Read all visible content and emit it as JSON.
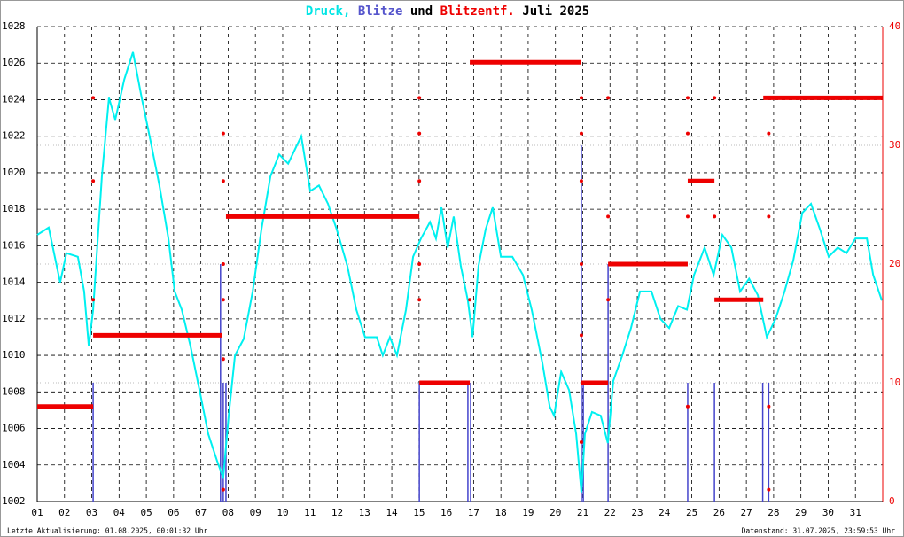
{
  "chart_data": {
    "type": "line",
    "title_parts": [
      {
        "text": "Druck,",
        "color": "#00e5e5"
      },
      {
        "text": "Blitze",
        "color": "#5555cc"
      },
      {
        "text": "und",
        "color": "#000000"
      },
      {
        "text": "Blitzentf.",
        "color": "#ee0000"
      },
      {
        "text": "Juli 2025",
        "color": "#000000"
      }
    ],
    "footer_left": "Letzte Aktualisierung: 01.08.2025, 00:01:32 Uhr",
    "footer_right": "Datenstand: 31.07.2025, 23:59:53 Uhr",
    "xlim": [
      1,
      32
    ],
    "xticks": [
      {
        "value": 1,
        "label": "01"
      },
      {
        "value": 2,
        "label": "02"
      },
      {
        "value": 3,
        "label": "03"
      },
      {
        "value": 4,
        "label": "04"
      },
      {
        "value": 5,
        "label": "05"
      },
      {
        "value": 6,
        "label": "06"
      },
      {
        "value": 7,
        "label": "07"
      },
      {
        "value": 8,
        "label": "08"
      },
      {
        "value": 9,
        "label": "09"
      },
      10,
      11,
      12,
      13,
      14,
      15,
      16,
      17,
      18,
      19,
      20,
      21,
      22,
      23,
      24,
      25,
      26,
      27,
      28,
      29,
      30,
      31
    ],
    "ylim": [
      1002,
      1028
    ],
    "yticks": [
      1002,
      1004,
      1006,
      1008,
      1010,
      1012,
      1014,
      1016,
      1018,
      1020,
      1022,
      1024,
      1026,
      1028
    ],
    "y2lim": [
      0,
      40
    ],
    "y2ticks": [
      0,
      10,
      20,
      30,
      40
    ],
    "y2color": "#ee0000",
    "grid": true,
    "series": [
      {
        "kind": "line",
        "color": "#00f0f0",
        "x": [
          1.0,
          1.42,
          1.84,
          2.07,
          2.49,
          2.72,
          2.89,
          3.05,
          3.37,
          3.63,
          3.86,
          4.19,
          4.51,
          4.83,
          5.16,
          5.48,
          5.81,
          6.04,
          6.3,
          6.62,
          6.95,
          7.27,
          7.6,
          7.82,
          8.02,
          8.25,
          8.57,
          8.9,
          9.22,
          9.55,
          9.87,
          10.2,
          10.68,
          11.01,
          11.33,
          11.66,
          11.98,
          12.37,
          12.7,
          13.02,
          13.45,
          13.67,
          13.93,
          14.19,
          14.52,
          14.78,
          15.07,
          15.4,
          15.62,
          15.82,
          16.05,
          16.27,
          16.53,
          16.79,
          16.96,
          17.18,
          17.44,
          17.7,
          18.0,
          18.42,
          18.81,
          19.13,
          19.52,
          19.79,
          19.95,
          20.21,
          20.5,
          20.76,
          20.95,
          21.08,
          21.34,
          21.66,
          21.92,
          22.12,
          22.45,
          22.77,
          23.1,
          23.52,
          23.85,
          24.17,
          24.5,
          24.82,
          25.08,
          25.47,
          25.8,
          26.12,
          26.45,
          26.77,
          27.1,
          27.42,
          27.75,
          28.07,
          28.4,
          28.72,
          29.05,
          29.37,
          29.7,
          30.02,
          30.35,
          30.67,
          31.0,
          31.42,
          31.65,
          31.97
        ],
        "values": [
          1016.6,
          1017,
          1014,
          1015.6,
          1015.4,
          1013.5,
          1010.5,
          1012.5,
          1019.8,
          1024.1,
          1022.9,
          1025.1,
          1026.6,
          1024.1,
          1021.7,
          1019.3,
          1016.4,
          1013.5,
          1012.5,
          1010.5,
          1008.1,
          1005.7,
          1004.2,
          1003.3,
          1006.7,
          1010,
          1010.9,
          1013.5,
          1016.9,
          1019.8,
          1021,
          1020.5,
          1022,
          1019,
          1019.3,
          1018.3,
          1016.9,
          1014.9,
          1012.5,
          1011,
          1011,
          1010,
          1011,
          1010,
          1012.5,
          1015.4,
          1016.4,
          1017.3,
          1016.4,
          1018.1,
          1015.9,
          1017.6,
          1014.9,
          1013,
          1011,
          1014.9,
          1016.9,
          1018.1,
          1015.4,
          1015.4,
          1014.4,
          1012.5,
          1009.6,
          1007.2,
          1006.7,
          1009.1,
          1008.1,
          1005.7,
          1002.5,
          1005.7,
          1006.9,
          1006.7,
          1005.2,
          1008.6,
          1010,
          1011.5,
          1013.5,
          1013.5,
          1012,
          1011.5,
          1012.7,
          1012.5,
          1014.4,
          1015.9,
          1014.4,
          1016.6,
          1015.9,
          1013.5,
          1014.2,
          1013.3,
          1011,
          1012,
          1013.5,
          1015.2,
          1017.8,
          1018.3,
          1016.9,
          1015.4,
          1015.9,
          1015.6,
          1016.4,
          1016.4,
          1014.4,
          1013
        ]
      },
      {
        "kind": "bars",
        "axis": "y2",
        "color": "#4444cc",
        "x": [
          3.05,
          7.72,
          7.82,
          7.92,
          15.01,
          16.79,
          16.89,
          20.95,
          21.02,
          21.93,
          24.85,
          25.83,
          27.6,
          27.82
        ],
        "values": [
          10,
          20,
          10,
          10,
          10,
          10,
          10,
          30,
          10,
          20,
          10,
          10,
          10,
          10
        ]
      },
      {
        "kind": "segments",
        "axis": "y2",
        "color": "#ee0000",
        "x_start": [
          1.0,
          3.05,
          7.92,
          15.01,
          16.86,
          20.95,
          21.93,
          24.85,
          25.83,
          27.62
        ],
        "x_end": [
          3.05,
          7.76,
          15.01,
          16.86,
          20.95,
          21.93,
          24.85,
          25.83,
          27.62,
          32.0
        ],
        "values": [
          8,
          14,
          24,
          10,
          37,
          10,
          20,
          27,
          17,
          34
        ]
      },
      {
        "kind": "points",
        "axis": "y2",
        "color": "#ee0000",
        "x": [
          3.05,
          3.05,
          3.05,
          7.82,
          7.82,
          7.82,
          7.82,
          7.82,
          7.82,
          15.01,
          15.01,
          15.01,
          15.01,
          15.01,
          16.86,
          20.95,
          20.95,
          20.95,
          20.95,
          20.95,
          20.95,
          21.93,
          21.93,
          21.93,
          24.85,
          24.85,
          24.85,
          24.85,
          25.83,
          25.83,
          27.82,
          27.82,
          27.82,
          27.82
        ],
        "values": [
          34,
          27,
          17,
          31,
          27,
          20,
          17,
          12,
          1,
          34,
          31,
          27,
          20,
          17,
          17,
          34,
          31,
          27,
          20,
          14,
          5,
          34,
          24,
          17,
          34,
          31,
          24,
          8,
          34,
          24,
          31,
          24,
          8,
          1
        ]
      }
    ]
  }
}
